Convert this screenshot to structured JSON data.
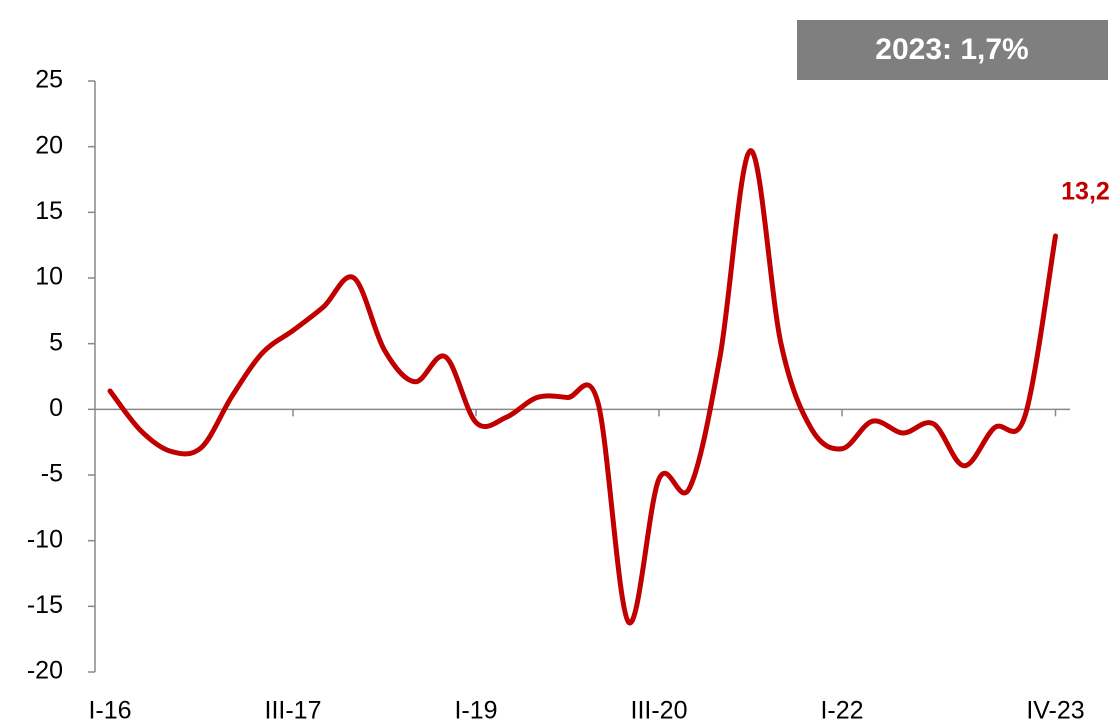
{
  "chart_data": {
    "type": "line",
    "annotation": "2023: 1,7%",
    "categories": [
      "I-16",
      null,
      null,
      null,
      null,
      null,
      "III-17",
      null,
      null,
      null,
      null,
      null,
      "I-19",
      null,
      null,
      null,
      null,
      null,
      "III-20",
      null,
      null,
      null,
      null,
      null,
      "I-22",
      null,
      null,
      null,
      null,
      null,
      null,
      "IV-23"
    ],
    "values": [
      1.4,
      -1.6,
      -3.2,
      -2.9,
      1.0,
      4.3,
      6.0,
      7.8,
      10.0,
      4.5,
      2.1,
      4.0,
      -1.0,
      -0.6,
      0.9,
      0.9,
      0.5,
      -16.2,
      -5.3,
      -6.0,
      4.0,
      19.7,
      5.0,
      -1.5,
      -3.0,
      -0.9,
      -1.8,
      -1.1,
      -4.3,
      -1.4,
      -0.5,
      13.2
    ],
    "value_labels": [
      null,
      null,
      null,
      null,
      null,
      null,
      null,
      null,
      null,
      null,
      null,
      null,
      null,
      null,
      null,
      null,
      null,
      null,
      null,
      null,
      null,
      null,
      null,
      null,
      null,
      null,
      null,
      null,
      null,
      null,
      null,
      "13,2"
    ],
    "color": "#c00000",
    "ylim": [
      -20,
      25
    ],
    "yticks": [
      -20,
      -15,
      -10,
      -5,
      0,
      5,
      10,
      15,
      20,
      25
    ]
  }
}
